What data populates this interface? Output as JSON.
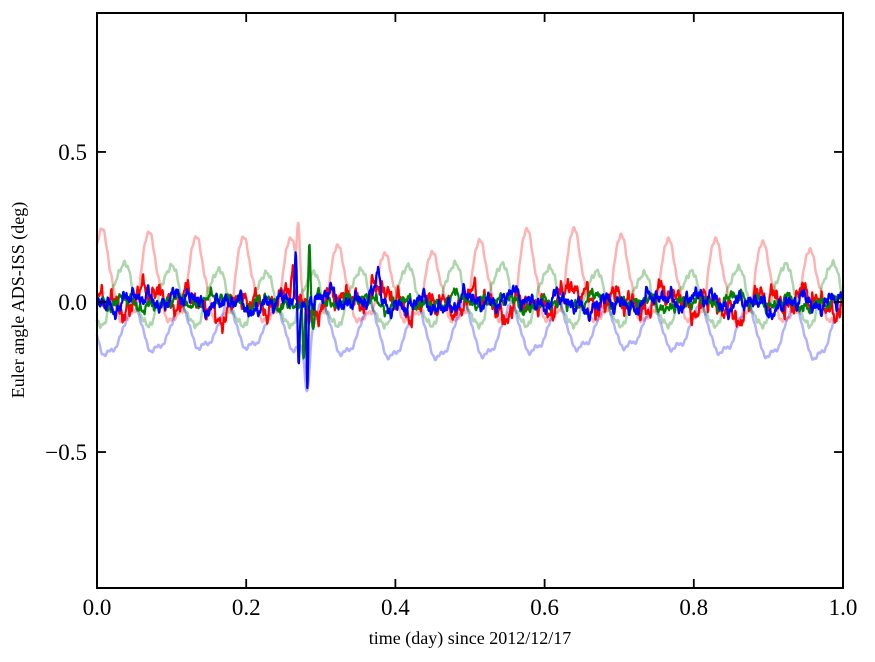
{
  "figure": {
    "background": "#ffffff",
    "axes_color": "#000000"
  },
  "chart_data": {
    "type": "line",
    "title": "",
    "xlabel": "time (day) since 2012/12/17",
    "ylabel": "Euler angle ADS-ISS (deg)",
    "xlim": [
      0.0,
      1.0
    ],
    "ylim": [
      -0.953,
      0.963
    ],
    "grid": false,
    "legend": null,
    "x_ticks": [
      {
        "v": 0.0,
        "label": "0.0"
      },
      {
        "v": 0.2,
        "label": "0.2"
      },
      {
        "v": 0.4,
        "label": "0.4"
      },
      {
        "v": 0.6,
        "label": "0.6"
      },
      {
        "v": 0.8,
        "label": "0.8"
      },
      {
        "v": 1.0,
        "label": "1.0"
      }
    ],
    "y_ticks": [
      {
        "v": 0.5,
        "label": "0.5"
      },
      {
        "v": 0.0,
        "label": "0.0"
      },
      {
        "v": -0.5,
        "label": "−0.5"
      }
    ],
    "orbital_frequency_cycles_per_day": 15.8,
    "samples": 1600,
    "series": [
      {
        "id": "pink-faded",
        "color": "#ff0000",
        "opacity": 0.3,
        "line_width": 2.5,
        "base": -0.055,
        "bump": {
          "t0": 0.007,
          "amp": 0.26,
          "exp": 2.0,
          "mod": [
            [
              0.13,
              1.7,
              0.7
            ],
            [
              0.07,
              3.3,
              2.1
            ]
          ]
        },
        "wave2": null,
        "noise": [
          [
            0.012,
            47.4,
            1.0
          ],
          [
            0.007,
            79,
            3.0
          ],
          [
            0.005,
            205,
            1.8
          ]
        ]
      },
      {
        "id": "green-faded",
        "color": "#008000",
        "opacity": 0.32,
        "line_width": 2.5,
        "base": -0.075,
        "bump": {
          "t0": 0.0355,
          "amp": 0.185,
          "exp": 1.15,
          "mod": [
            [
              0.09,
              2.1,
              1.3
            ]
          ]
        },
        "wave2": null,
        "noise": [
          [
            0.009,
            47.4,
            2.0
          ],
          [
            0.006,
            142,
            0.8
          ],
          [
            0.004,
            260,
            4.1
          ]
        ]
      },
      {
        "id": "blue-faded",
        "color": "#0000ff",
        "opacity": 0.3,
        "line_width": 2.5,
        "base": -0.028,
        "bump": {
          "t0": 0.016,
          "amp": -0.155,
          "exp": 1.25,
          "mod": [
            [
              0.12,
              1.9,
              2.6
            ]
          ]
        },
        "wave2": {
          "amp": 0.022,
          "phase": 1.2
        },
        "noise": [
          [
            0.007,
            63,
            1.5
          ],
          [
            0.004,
            190,
            3.6
          ]
        ]
      },
      {
        "id": "red",
        "color": "#ff0000",
        "opacity": 1.0,
        "line_width": 2.2,
        "base": 0,
        "bump": null,
        "wave2": null,
        "noise": [
          [
            0.026,
            15.8,
            1.2
          ],
          [
            0.018,
            31.6,
            2.9
          ],
          [
            0.015,
            52,
            0.4
          ],
          [
            0.013,
            88,
            4.4
          ],
          [
            0.011,
            146,
            2.2
          ],
          [
            0.009,
            232,
            5.0
          ],
          [
            0.007,
            312,
            1.1
          ],
          [
            0.016,
            7.3,
            3.7
          ],
          [
            0.012,
            3.1,
            0.9
          ],
          [
            0.006,
            418,
            2.6
          ]
        ]
      },
      {
        "id": "green",
        "color": "#008000",
        "opacity": 1.0,
        "line_width": 2.2,
        "base": 0,
        "bump": null,
        "wave2": null,
        "noise": [
          [
            0.012,
            15.8,
            4.0
          ],
          [
            0.01,
            27,
            1.5
          ],
          [
            0.008,
            49,
            5.2
          ],
          [
            0.007,
            83,
            2.8
          ],
          [
            0.006,
            139,
            0.6
          ],
          [
            0.005,
            221,
            3.3
          ],
          [
            0.004,
            307,
            1.9
          ],
          [
            0.008,
            5.7,
            2.4
          ],
          [
            0.004,
            401,
            0.7
          ]
        ]
      },
      {
        "id": "blue",
        "color": "#0000ff",
        "opacity": 1.0,
        "line_width": 2.2,
        "base": 0,
        "bump": null,
        "wave2": null,
        "noise": [
          [
            0.017,
            15.8,
            2.6
          ],
          [
            0.013,
            33,
            5.7
          ],
          [
            0.011,
            57,
            1.8
          ],
          [
            0.009,
            97,
            3.9
          ],
          [
            0.008,
            151,
            0.2
          ],
          [
            0.006,
            241,
            4.8
          ],
          [
            0.005,
            331,
            2.5
          ],
          [
            0.011,
            4.3,
            5.5
          ],
          [
            0.005,
            421,
            3.2
          ]
        ]
      }
    ],
    "glitch_events": [
      {
        "series": "pink-faded",
        "t": 0.27,
        "amp": 0.17,
        "w": 0.0025
      },
      {
        "series": "blue-faded",
        "t": 0.282,
        "amp": -0.17,
        "w": 0.0045
      },
      {
        "series": "red",
        "t": 0.2625,
        "amp": 0.16,
        "w": 0.0022
      },
      {
        "series": "blue",
        "t": 0.2665,
        "amp": 0.185,
        "w": 0.0018
      },
      {
        "series": "blue",
        "t": 0.2705,
        "amp": -0.16,
        "w": 0.0018
      },
      {
        "series": "blue",
        "t": 0.282,
        "amp": -0.29,
        "w": 0.0017
      },
      {
        "series": "green",
        "t": 0.277,
        "amp": -0.185,
        "w": 0.0018
      },
      {
        "series": "green",
        "t": 0.2848,
        "amp": 0.2,
        "w": 0.0018
      },
      {
        "series": "green",
        "t": 0.2895,
        "amp": -0.12,
        "w": 0.0022
      },
      {
        "series": "blue",
        "t": 0.3765,
        "amp": 0.095,
        "w": 0.0035
      }
    ]
  }
}
